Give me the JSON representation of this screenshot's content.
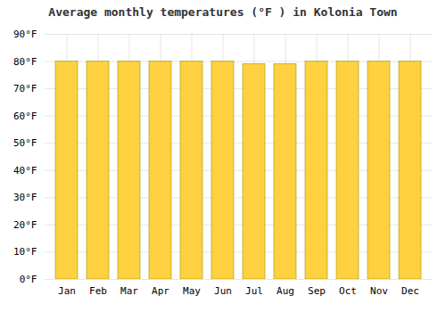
{
  "chart_data": {
    "type": "bar",
    "title": "Average monthly temperatures (°F ) in Kolonia Town",
    "categories": [
      "Jan",
      "Feb",
      "Mar",
      "Apr",
      "May",
      "Jun",
      "Jul",
      "Aug",
      "Sep",
      "Oct",
      "Nov",
      "Dec"
    ],
    "values": [
      80,
      80,
      80,
      80,
      80,
      80,
      79,
      79,
      80,
      80,
      80,
      80
    ],
    "color": "#FFD040",
    "ylim": [
      0,
      90
    ],
    "yticks": [
      {
        "value": 0,
        "label": "0°F"
      },
      {
        "value": 10,
        "label": "10°F"
      },
      {
        "value": 20,
        "label": "20°F"
      },
      {
        "value": 30,
        "label": "30°F"
      },
      {
        "value": 40,
        "label": "40°F"
      },
      {
        "value": 50,
        "label": "50°F"
      },
      {
        "value": 60,
        "label": "60°F"
      },
      {
        "value": 70,
        "label": "70°F"
      },
      {
        "value": 80,
        "label": "80°F"
      },
      {
        "value": 90,
        "label": "90°F"
      }
    ],
    "grid": true
  }
}
